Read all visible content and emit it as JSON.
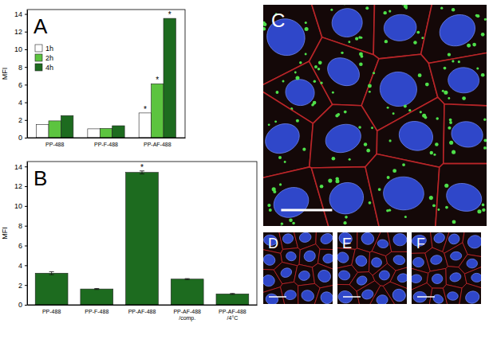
{
  "chart_data": [
    {
      "type": "bar",
      "title": "A",
      "y_label": "MFI",
      "categories": [
        "PP-488",
        "PP-F-488",
        "PP-AF-488"
      ],
      "series": [
        {
          "name": "1h",
          "color": "#ffffff",
          "values": [
            1.5,
            1.0,
            2.8
          ]
        },
        {
          "name": "2h",
          "color": "#5cc43f",
          "values": [
            1.9,
            1.05,
            6.1
          ]
        },
        {
          "name": "4h",
          "color": "#1d6b1f",
          "values": [
            2.5,
            1.35,
            13.5
          ]
        }
      ],
      "ylim": [
        0,
        14.5
      ],
      "yticks": [
        0,
        2,
        4,
        6,
        8,
        10,
        12,
        14
      ],
      "legend": "upper left",
      "annotations": [
        {
          "text": "*",
          "category": "PP-AF-488",
          "series": "1h"
        },
        {
          "text": "*",
          "category": "PP-AF-488",
          "series": "2h"
        },
        {
          "text": "*",
          "category": "PP-AF-488",
          "series": "4h"
        }
      ]
    },
    {
      "type": "bar",
      "title": "B",
      "y_label": "MFI",
      "categories": [
        "PP-488",
        "PP-F-488",
        "PP-AF-488",
        "PP-AF-488 /comp.",
        "PP-AF-488 /4°C"
      ],
      "values": [
        3.2,
        1.6,
        13.4,
        2.6,
        1.1
      ],
      "errors": [
        0.15,
        0.05,
        0.15,
        0.05,
        0.05
      ],
      "color": "#1d6b1f",
      "ylim": [
        0,
        14.5
      ],
      "yticks": [
        0,
        2,
        4,
        6,
        8,
        10,
        12,
        14
      ],
      "annotations": [
        {
          "text": "*",
          "category": "PP-AF-488"
        }
      ]
    }
  ],
  "images": [
    {
      "label": "C"
    },
    {
      "label": "D"
    },
    {
      "label": "E"
    },
    {
      "label": "F"
    }
  ]
}
